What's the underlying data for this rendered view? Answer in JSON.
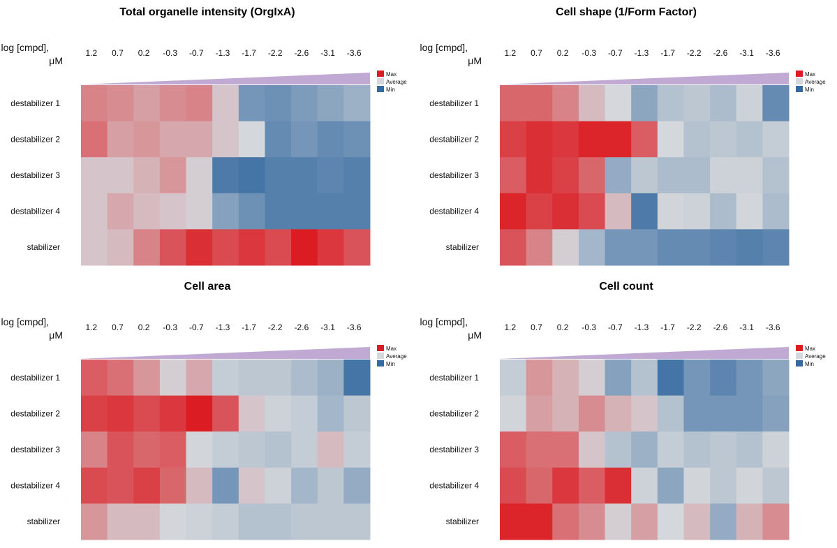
{
  "colors": {
    "max": "#db1c22",
    "average": "#d4d7db",
    "min": "#356aa0",
    "ramp": "#c0a9d2"
  },
  "legend": {
    "max": "Max",
    "average": "Average",
    "min": "Min"
  },
  "chart_data": [
    {
      "type": "heatmap",
      "title": "Total organelle intensity (OrgIxA)",
      "ylabel_line1": "log [cmpd],",
      "ylabel_line2": "μM",
      "x": [
        "1.2",
        "0.7",
        "0.2",
        "-0.3",
        "-0.7",
        "-1.3",
        "-1.7",
        "-2.2",
        "-2.6",
        "-3.1",
        "-3.6"
      ],
      "rows": [
        "destabilizer 1",
        "destabilizer 2",
        "destabilizer 3",
        "destabilizer 4",
        "stabilizer"
      ],
      "value_scale": [
        -1,
        1
      ],
      "values": [
        [
          0.45,
          0.4,
          0.3,
          0.4,
          0.45,
          0.1,
          -0.6,
          -0.65,
          -0.55,
          -0.45,
          -0.35
        ],
        [
          0.55,
          0.3,
          0.35,
          0.25,
          0.25,
          0.1,
          0.0,
          -0.7,
          -0.6,
          -0.7,
          -0.65
        ],
        [
          0.1,
          0.1,
          0.2,
          0.35,
          0.05,
          -0.85,
          -0.9,
          -0.8,
          -0.8,
          -0.75,
          -0.8
        ],
        [
          0.1,
          0.25,
          0.15,
          0.1,
          0.05,
          -0.5,
          -0.65,
          -0.8,
          -0.8,
          -0.8,
          -0.8
        ],
        [
          0.1,
          0.15,
          0.45,
          0.7,
          0.9,
          0.75,
          0.85,
          0.75,
          1.0,
          0.85,
          0.7
        ]
      ]
    },
    {
      "type": "heatmap",
      "title": "Cell shape (1/Form Factor)",
      "ylabel_line1": "log [cmpd],",
      "ylabel_line2": "μM",
      "x": [
        "1.2",
        "0.7",
        "0.2",
        "-0.3",
        "-0.7",
        "-1.3",
        "-1.7",
        "-2.2",
        "-2.6",
        "-3.1",
        "-3.6"
      ],
      "rows": [
        "destabilizer 1",
        "destabilizer 2",
        "destabilizer 3",
        "destabilizer 4",
        "stabilizer"
      ],
      "value_scale": [
        -1,
        1
      ],
      "values": [
        [
          0.6,
          0.6,
          0.45,
          0.15,
          0.0,
          -0.45,
          -0.2,
          -0.15,
          -0.25,
          -0.05,
          -0.7
        ],
        [
          0.8,
          0.9,
          0.85,
          0.95,
          0.95,
          0.65,
          0.0,
          -0.2,
          -0.15,
          -0.2,
          -0.1
        ],
        [
          0.65,
          0.9,
          0.8,
          0.6,
          -0.4,
          -0.15,
          -0.25,
          -0.25,
          -0.05,
          -0.05,
          -0.2
        ],
        [
          0.95,
          0.8,
          0.9,
          0.75,
          0.15,
          -0.85,
          -0.02,
          -0.05,
          -0.25,
          -0.01,
          -0.25
        ],
        [
          0.7,
          0.45,
          0.05,
          -0.3,
          -0.6,
          -0.6,
          -0.7,
          -0.7,
          -0.75,
          -0.8,
          -0.75
        ]
      ]
    },
    {
      "type": "heatmap",
      "title": "Cell area",
      "ylabel_line1": "log [cmpd],",
      "ylabel_line2": "μM",
      "x": [
        "1.2",
        "0.7",
        "0.2",
        "-0.3",
        "-0.7",
        "-1.3",
        "-1.7",
        "-2.2",
        "-2.6",
        "-3.1",
        "-3.6"
      ],
      "rows": [
        "destabilizer 1",
        "destabilizer 2",
        "destabilizer 3",
        "destabilizer 4",
        "stabilizer"
      ],
      "value_scale": [
        -1,
        1
      ],
      "values": [
        [
          0.65,
          0.55,
          0.35,
          0.05,
          0.25,
          -0.1,
          -0.15,
          -0.15,
          -0.25,
          -0.35,
          -0.9
        ],
        [
          0.8,
          0.85,
          0.75,
          0.85,
          1.0,
          0.7,
          0.1,
          -0.05,
          -0.1,
          -0.3,
          -0.15
        ],
        [
          0.45,
          0.7,
          0.6,
          0.65,
          -0.01,
          -0.1,
          -0.15,
          -0.2,
          -0.1,
          0.15,
          -0.1
        ],
        [
          0.75,
          0.7,
          0.8,
          0.6,
          0.15,
          -0.6,
          0.1,
          -0.05,
          -0.3,
          -0.15,
          -0.4
        ],
        [
          0.35,
          0.15,
          0.15,
          -0.01,
          -0.05,
          -0.1,
          -0.2,
          -0.2,
          -0.15,
          -0.15,
          -0.15
        ]
      ]
    },
    {
      "type": "heatmap",
      "title": "Cell count",
      "ylabel_line1": "log [cmpd],",
      "ylabel_line2": "μM",
      "x": [
        "1.2",
        "0.7",
        "0.2",
        "-0.3",
        "-0.7",
        "-1.3",
        "-1.7",
        "-2.2",
        "-2.6",
        "-3.1",
        "-3.6"
      ],
      "rows": [
        "destabilizer 1",
        "destabilizer 2",
        "destabilizer 3",
        "destabilizer 4",
        "stabilizer"
      ],
      "value_scale": [
        -1,
        1
      ],
      "values": [
        [
          -0.1,
          0.35,
          0.2,
          0.05,
          -0.5,
          -0.2,
          -0.9,
          -0.6,
          -0.75,
          -0.6,
          -0.45
        ],
        [
          -0.02,
          0.3,
          0.2,
          0.4,
          0.2,
          0.1,
          -0.2,
          -0.6,
          -0.6,
          -0.6,
          -0.5
        ],
        [
          0.65,
          0.55,
          0.55,
          0.1,
          -0.2,
          -0.35,
          -0.1,
          -0.2,
          -0.15,
          -0.2,
          -0.05
        ],
        [
          0.75,
          0.6,
          0.85,
          0.65,
          0.9,
          -0.05,
          -0.45,
          -0.02,
          -0.15,
          -0.02,
          -0.15
        ],
        [
          0.95,
          0.95,
          0.55,
          0.4,
          0.05,
          0.3,
          0.0,
          0.15,
          -0.4,
          0.2,
          0.4
        ]
      ]
    }
  ]
}
